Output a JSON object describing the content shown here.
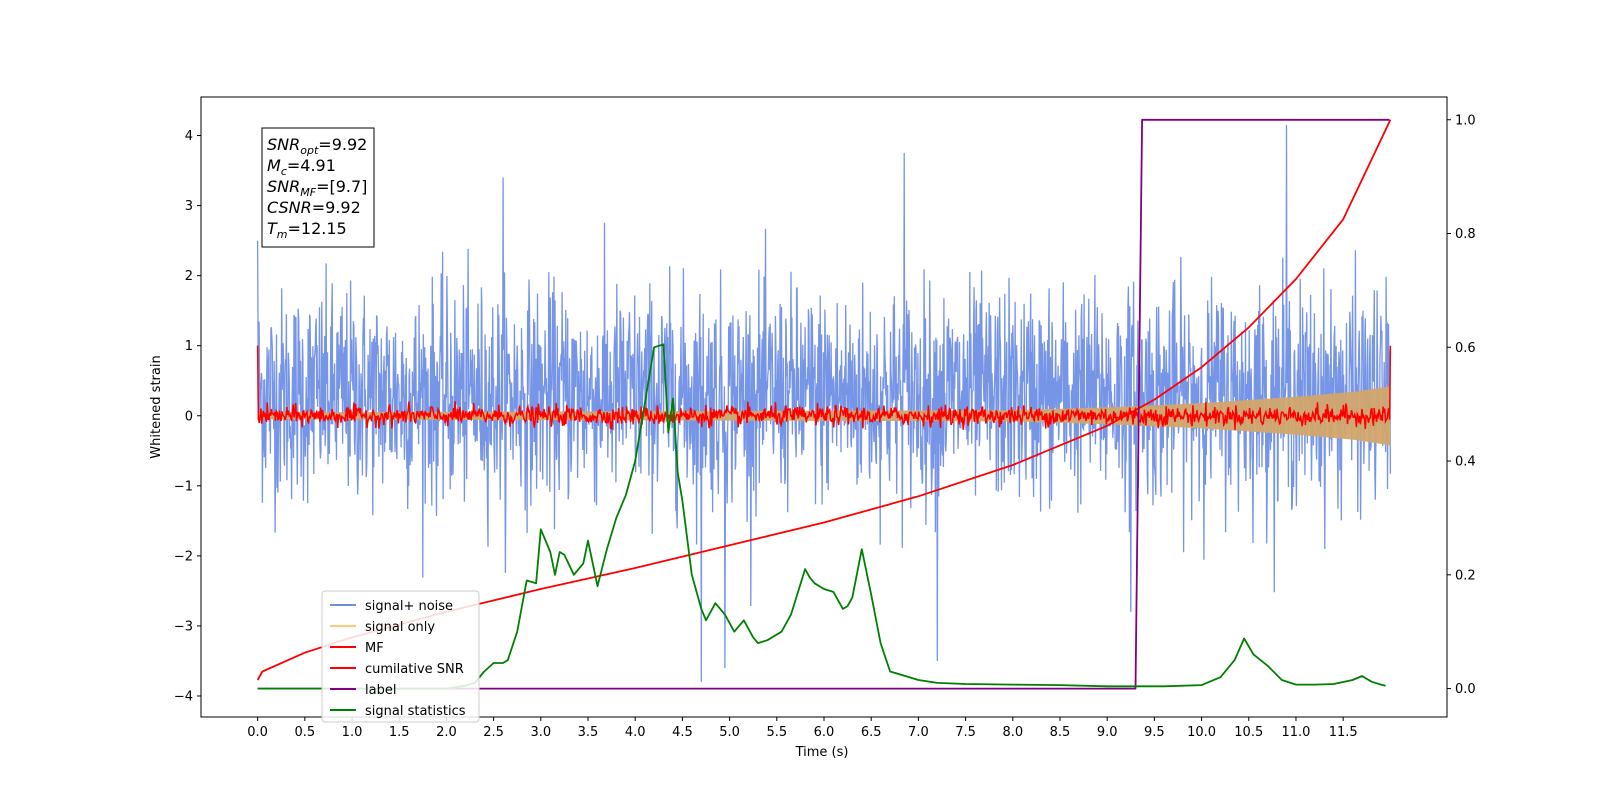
{
  "chart_data": {
    "type": "line",
    "xlabel": "Time (s)",
    "ylabel": "Whitened strain",
    "xlim": [
      -0.6,
      12.6
    ],
    "ylim": [
      -4.3,
      4.55
    ],
    "y2lim": [
      -0.05,
      1.04
    ],
    "x_ticks": [
      0.0,
      0.5,
      1.0,
      1.5,
      2.0,
      2.5,
      3.0,
      3.5,
      4.0,
      4.5,
      5.0,
      5.5,
      6.0,
      6.5,
      7.0,
      7.5,
      8.0,
      8.5,
      9.0,
      9.5,
      10.0,
      10.5,
      11.0,
      11.5
    ],
    "x_tick_labels": [
      "0.0",
      "0.5",
      "1.0",
      "1.5",
      "2.0",
      "2.5",
      "3.0",
      "3.5",
      "4.0",
      "4.5",
      "5.0",
      "5.5",
      "6.0",
      "6.5",
      "7.0",
      "7.5",
      "8.0",
      "8.5",
      "9.0",
      "9.5",
      "10.0",
      "10.5",
      "11.0",
      "11.5"
    ],
    "y_ticks": [
      -4,
      -3,
      -2,
      -1,
      0,
      1,
      2,
      3,
      4
    ],
    "y_tick_labels": [
      "−4",
      "−3",
      "−2",
      "−1",
      "0",
      "1",
      "2",
      "3",
      "4"
    ],
    "y2_ticks": [
      0.0,
      0.2,
      0.4,
      0.6,
      0.8,
      1.0
    ],
    "y2_tick_labels": [
      "0.0",
      "0.2",
      "0.4",
      "0.6",
      "0.8",
      "1.0"
    ],
    "grid": false,
    "legend": {
      "position": "lower-left",
      "entries": [
        {
          "name": "signal+ noise",
          "color": "#6f8fe6"
        },
        {
          "name": "signal only",
          "color": "#ffc87a"
        },
        {
          "name": "MF",
          "color": "#ff0000"
        },
        {
          "name": "cumilative SNR",
          "color": "#ff0000"
        },
        {
          "name": "label",
          "color": "#800080"
        },
        {
          "name": "signal statistics",
          "color": "#008000"
        }
      ]
    },
    "annotation": {
      "lines": [
        {
          "base": "SNR",
          "sub": "opt",
          "value": "=9.92"
        },
        {
          "base": "M",
          "sub": "c",
          "value": "=4.91"
        },
        {
          "base": "SNR",
          "sub": "MF",
          "value": "=[9.7]"
        },
        {
          "base": "CSNR",
          "sub": "",
          "value": "=9.92"
        },
        {
          "base": "T",
          "sub": "m",
          "value": "=12.15"
        }
      ]
    },
    "series": [
      {
        "name": "signal+ noise",
        "axis": "left",
        "color": "#6f8fe6",
        "x_range": [
          0.0,
          12.0
        ],
        "mean": 0.3,
        "std": 0.75,
        "extremes": [
          [
            0.0,
            2.5
          ],
          [
            2.6,
            3.4
          ],
          [
            4.7,
            -3.8
          ],
          [
            6.85,
            3.75
          ],
          [
            7.2,
            -3.5
          ],
          [
            10.9,
            4.15
          ],
          [
            9.25,
            -2.8
          ],
          [
            4.95,
            -3.6
          ]
        ]
      },
      {
        "name": "signal only",
        "axis": "left",
        "color": "#d2a56b",
        "envelope": [
          [
            0.0,
            0.05
          ],
          [
            8.0,
            0.08
          ],
          [
            9.0,
            0.12
          ],
          [
            10.0,
            0.18
          ],
          [
            11.0,
            0.27
          ],
          [
            11.6,
            0.34
          ],
          [
            12.0,
            0.42
          ]
        ]
      },
      {
        "name": "MF",
        "axis": "left",
        "color": "#ff0000",
        "x_range": [
          0.0,
          12.0
        ],
        "mean": 0.0,
        "std": 0.07,
        "edges": [
          [
            0.0,
            1.0
          ],
          [
            12.0,
            1.0
          ]
        ]
      },
      {
        "name": "cumilative SNR",
        "axis": "right",
        "color": "#ff0000",
        "x": [
          0.0,
          0.05,
          0.5,
          1.0,
          2.0,
          3.0,
          4.0,
          5.0,
          6.0,
          7.0,
          8.0,
          9.0,
          9.5,
          10.0,
          10.5,
          11.0,
          11.5,
          12.0
        ],
        "y": [
          0.015,
          0.03,
          0.063,
          0.09,
          0.135,
          0.175,
          0.212,
          0.252,
          0.292,
          0.338,
          0.393,
          0.462,
          0.508,
          0.565,
          0.635,
          0.72,
          0.825,
          1.0
        ]
      },
      {
        "name": "label",
        "axis": "right",
        "color": "#800080",
        "x": [
          0.0,
          9.3,
          9.37,
          11.99
        ],
        "y": [
          0.0,
          0.0,
          1.0,
          1.0
        ]
      },
      {
        "name": "signal statistics",
        "axis": "right",
        "color": "#008000",
        "x": [
          0.0,
          0.5,
          1.0,
          1.5,
          2.0,
          2.2,
          2.3,
          2.4,
          2.5,
          2.6,
          2.65,
          2.75,
          2.85,
          2.95,
          3.0,
          3.1,
          3.15,
          3.2,
          3.25,
          3.35,
          3.45,
          3.5,
          3.6,
          3.7,
          3.8,
          3.9,
          4.0,
          4.1,
          4.2,
          4.3,
          4.35,
          4.4,
          4.45,
          4.5,
          4.6,
          4.7,
          4.75,
          4.85,
          4.95,
          5.05,
          5.15,
          5.25,
          5.3,
          5.4,
          5.55,
          5.65,
          5.8,
          5.85,
          5.9,
          6.0,
          6.1,
          6.2,
          6.25,
          6.3,
          6.4,
          6.5,
          6.6,
          6.7,
          6.8,
          7.0,
          7.2,
          7.5,
          8.0,
          8.5,
          9.0,
          9.3,
          9.6,
          10.0,
          10.2,
          10.35,
          10.45,
          10.55,
          10.7,
          10.85,
          11.0,
          11.2,
          11.4,
          11.6,
          11.7,
          11.8,
          11.9,
          11.95
        ],
        "y": [
          0.0,
          0.0,
          0.0,
          0.0,
          0.0,
          0.005,
          0.01,
          0.03,
          0.045,
          0.045,
          0.05,
          0.1,
          0.19,
          0.185,
          0.28,
          0.24,
          0.2,
          0.24,
          0.235,
          0.2,
          0.22,
          0.26,
          0.18,
          0.245,
          0.3,
          0.34,
          0.4,
          0.5,
          0.6,
          0.605,
          0.45,
          0.51,
          0.38,
          0.33,
          0.2,
          0.14,
          0.12,
          0.15,
          0.13,
          0.1,
          0.12,
          0.09,
          0.08,
          0.085,
          0.1,
          0.13,
          0.21,
          0.195,
          0.185,
          0.175,
          0.17,
          0.14,
          0.145,
          0.16,
          0.245,
          0.165,
          0.08,
          0.03,
          0.025,
          0.015,
          0.01,
          0.008,
          0.007,
          0.006,
          0.004,
          0.004,
          0.004,
          0.006,
          0.02,
          0.05,
          0.088,
          0.06,
          0.04,
          0.015,
          0.007,
          0.007,
          0.008,
          0.015,
          0.022,
          0.012,
          0.007,
          0.005
        ]
      }
    ]
  }
}
